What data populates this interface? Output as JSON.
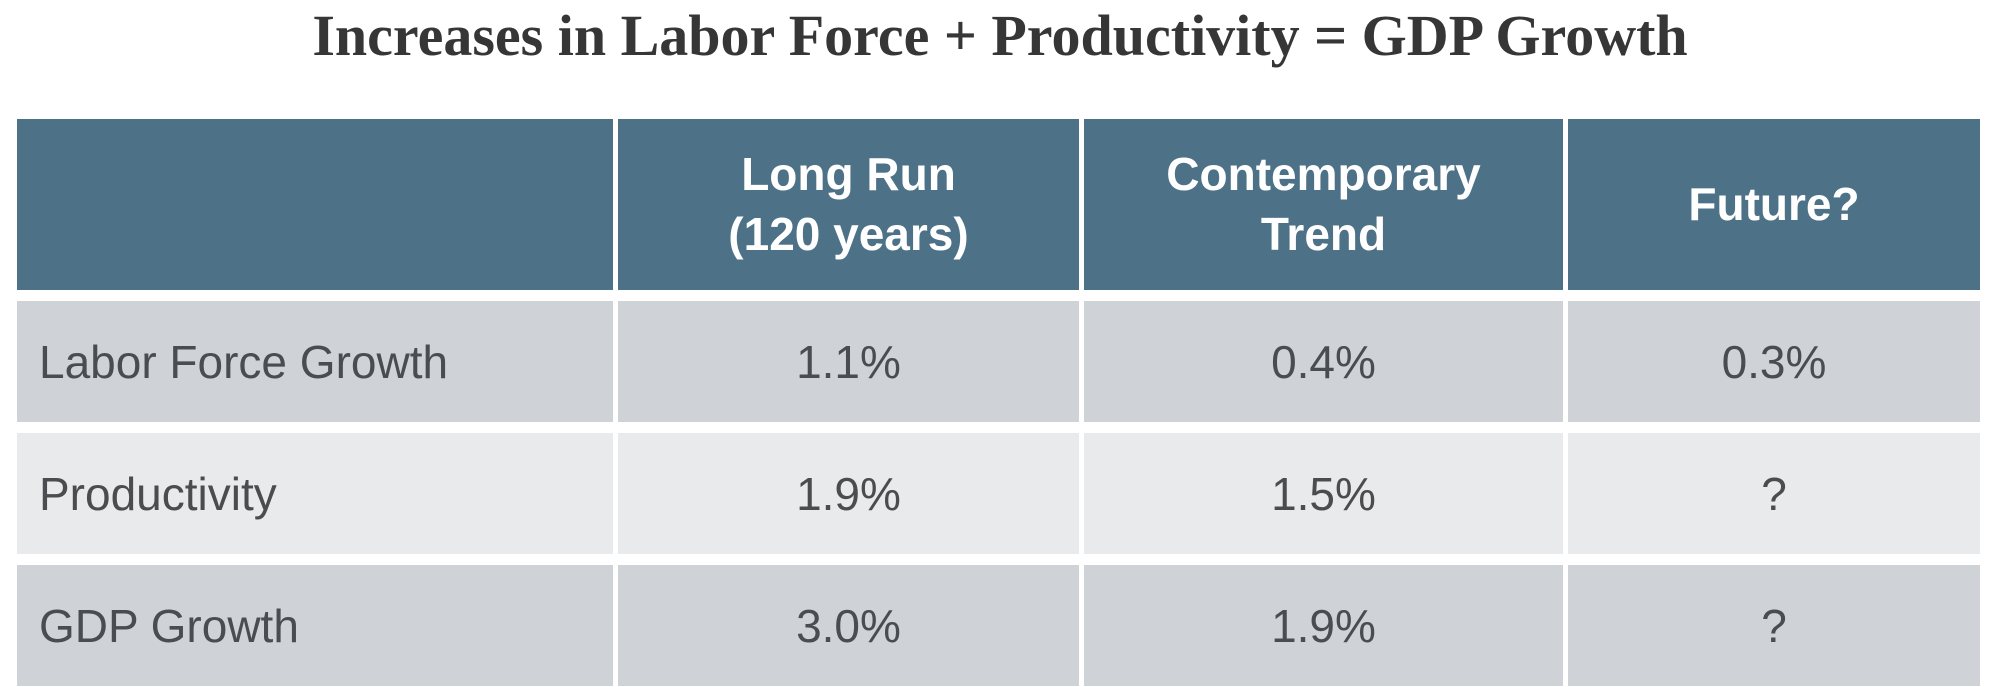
{
  "title": "Increases in Labor Force + Productivity = GDP Growth",
  "colors": {
    "header_bg": "#4D7288",
    "row_odd_bg": "#CFD3D7",
    "row_even_bg": "#E9EAEC",
    "header_text": "#FFFFFF",
    "cell_text": "#4A4D50",
    "title_text": "#363636",
    "page_bg": "#FFFFFF"
  },
  "chart_data": {
    "type": "table",
    "title": "Increases in Labor Force + Productivity = GDP Growth",
    "columns": [
      "",
      "Long Run\n(120 years)",
      "Contemporary\nTrend",
      "Future?"
    ],
    "rows": [
      {
        "label": "Labor Force Growth",
        "values": [
          "1.1%",
          "0.4%",
          "0.3%"
        ]
      },
      {
        "label": "Productivity",
        "values": [
          "1.9%",
          "1.5%",
          "?"
        ]
      },
      {
        "label": "GDP Growth",
        "values": [
          "3.0%",
          "1.9%",
          "?"
        ]
      }
    ],
    "layout": {
      "header_row": true,
      "first_column_is_label": true,
      "alternating_row_shading": true
    }
  }
}
